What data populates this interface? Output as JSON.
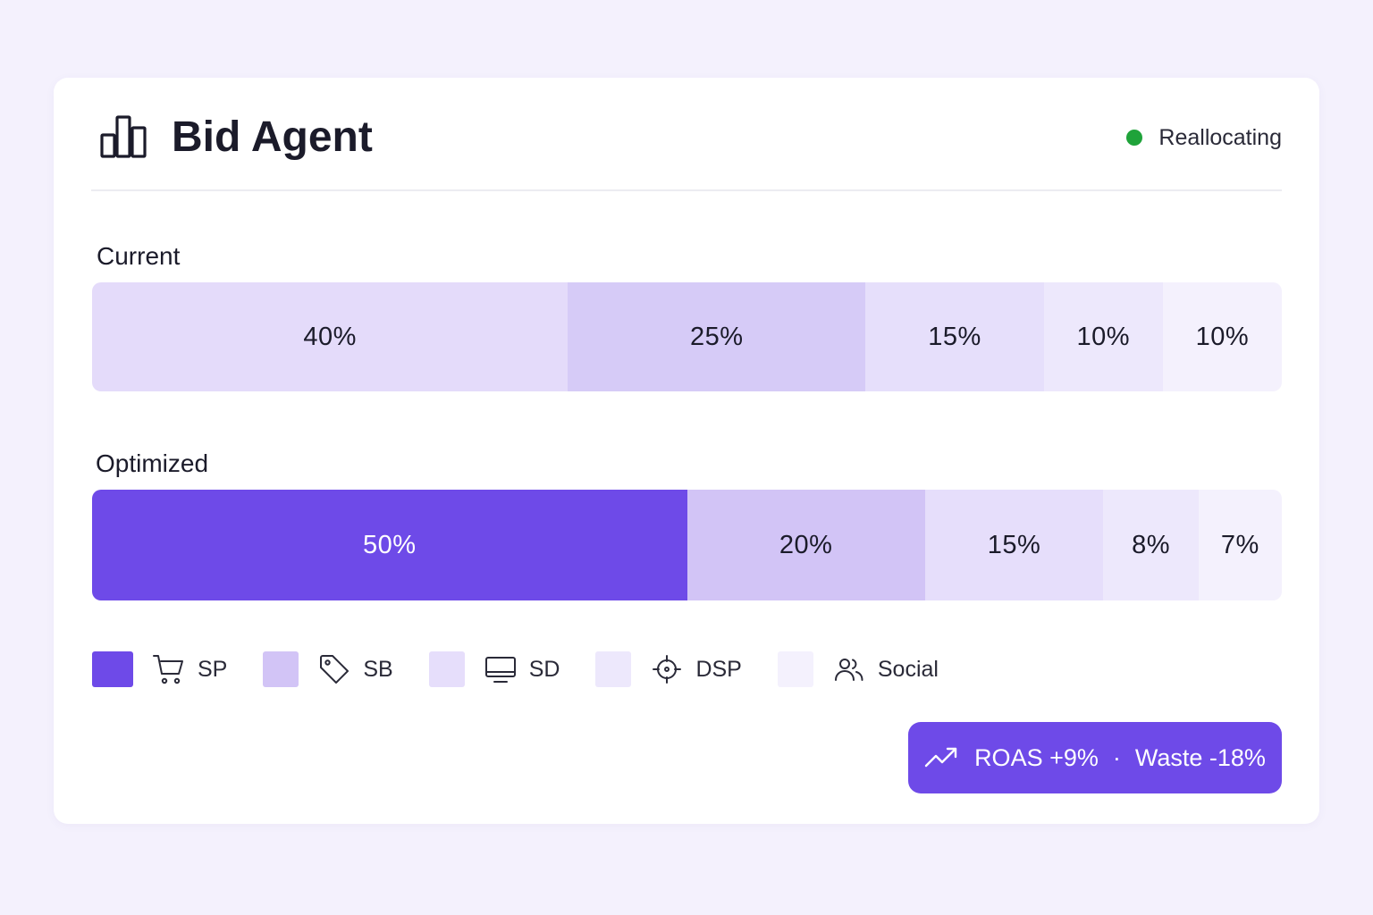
{
  "header": {
    "title": "Bid Agent",
    "icon": "bar-chart-icon",
    "status_text": "Reallocating",
    "status_color": "#1fa33a"
  },
  "chart_data": {
    "type": "bar",
    "orientation": "horizontal-stacked-100",
    "categories": [
      "Current",
      "Optimized"
    ],
    "series": [
      {
        "name": "SP",
        "values": [
          40,
          50
        ]
      },
      {
        "name": "SB",
        "values": [
          25,
          20
        ]
      },
      {
        "name": "SD",
        "values": [
          15,
          15
        ]
      },
      {
        "name": "DSP",
        "values": [
          10,
          8
        ]
      },
      {
        "name": "Social",
        "values": [
          10,
          7
        ]
      }
    ],
    "units": "%",
    "data_labels": {
      "Current": [
        "40%",
        "25%",
        "15%",
        "10%",
        "10%"
      ],
      "Optimized": [
        "50%",
        "20%",
        "15%",
        "8%",
        "7%"
      ]
    },
    "colors": {
      "Current": [
        "#e4dbfa",
        "#d6cbf7",
        "#e6dffb",
        "#ede8fc",
        "#f4f1fd"
      ],
      "Optimized": [
        "#6e4ae8",
        "#d2c4f6",
        "#e6defb",
        "#ede8fc",
        "#f4f1fd"
      ]
    },
    "legend_placement": "bottom-left",
    "legend": [
      {
        "label": "SP",
        "icon": "shopping-cart-icon",
        "color": "#6e4ae8"
      },
      {
        "label": "SB",
        "icon": "tag-icon",
        "color": "#d2c4f6"
      },
      {
        "label": "SD",
        "icon": "monitor-icon",
        "color": "#e6defb"
      },
      {
        "label": "DSP",
        "icon": "crosshair-icon",
        "color": "#ede8fc"
      },
      {
        "label": "Social",
        "icon": "users-icon",
        "color": "#f4f1fd"
      }
    ]
  },
  "summary": {
    "icon": "trending-up-icon",
    "roas": "ROAS +9%",
    "separator": "·",
    "waste": "Waste -18%",
    "color": "#6e4ae8"
  }
}
